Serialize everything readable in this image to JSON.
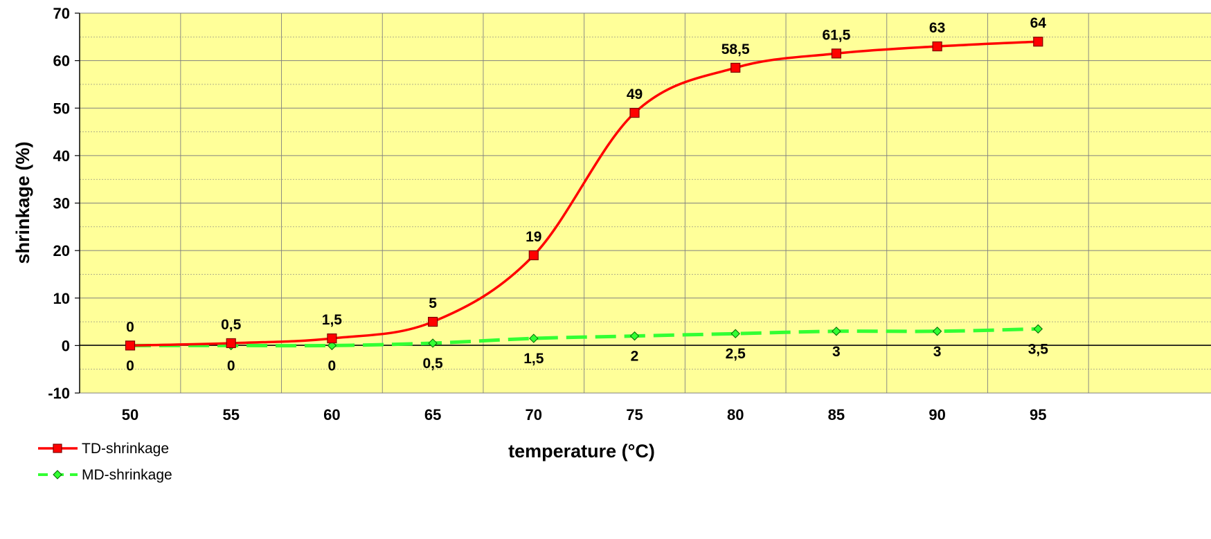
{
  "chart_data": {
    "type": "line",
    "xlabel": "temperature (°C)",
    "ylabel": "shrinkage (%)",
    "x": [
      50,
      55,
      60,
      65,
      70,
      75,
      80,
      85,
      90,
      95
    ],
    "x_tick_labels": [
      "50",
      "55",
      "60",
      "65",
      "70",
      "75",
      "80",
      "85",
      "90",
      "95"
    ],
    "y_tick_labels": [
      "-10",
      "0",
      "10",
      "20",
      "30",
      "40",
      "50",
      "60",
      "70"
    ],
    "ylim": [
      -10,
      70
    ],
    "yticks": [
      -10,
      0,
      10,
      20,
      30,
      40,
      50,
      60,
      70
    ],
    "grid": true,
    "legend_position": "bottom-left",
    "colors": {
      "plot_background": "#FFFF99",
      "grid": "#808080",
      "zero_line": "#000000"
    },
    "series": [
      {
        "name": "TD-shrinkage",
        "values": [
          0,
          0.5,
          1.5,
          5,
          19,
          49,
          58.5,
          61.5,
          63,
          64
        ],
        "labels": [
          "0",
          "0,5",
          "1,5",
          "5",
          "19",
          "49",
          "58,5",
          "61,5",
          "63",
          "64"
        ],
        "label_position": "above",
        "color": "#FF0000",
        "marker": "square",
        "marker_fill": "#FF0000",
        "line_style": "solid",
        "smooth": true
      },
      {
        "name": "MD-shrinkage",
        "values": [
          0,
          0,
          0,
          0.5,
          1.5,
          2,
          2.5,
          3,
          3,
          3.5
        ],
        "labels": [
          "0",
          "0",
          "0",
          "0,5",
          "1,5",
          "2",
          "2,5",
          "3",
          "3",
          "3,5"
        ],
        "label_position": "below",
        "color": "#33FF33",
        "marker": "diamond",
        "marker_fill": "#33FF33",
        "line_style": "dashed",
        "smooth": true
      }
    ]
  }
}
